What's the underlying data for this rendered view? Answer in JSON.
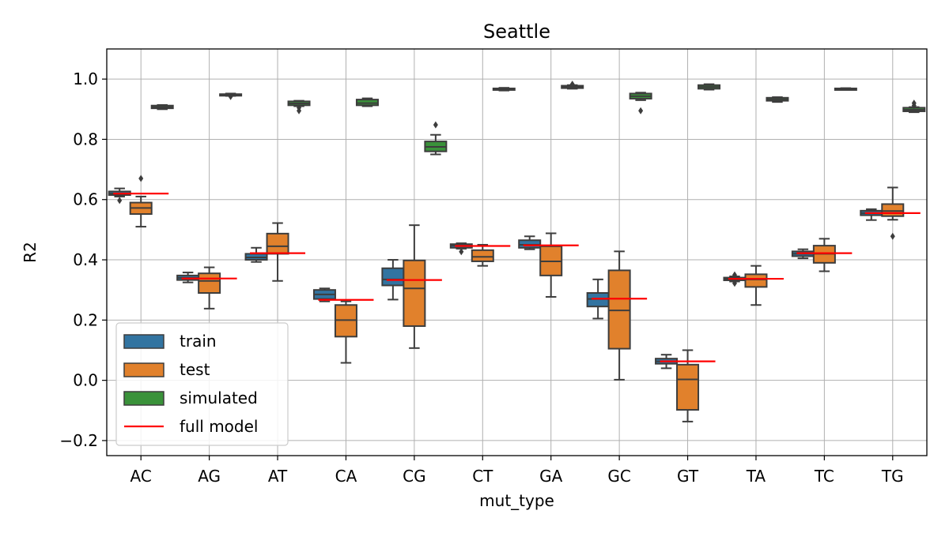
{
  "chart_data": {
    "type": "box",
    "title": "Seattle",
    "xlabel": "mut_type",
    "ylabel": "R2",
    "ylim": [
      -0.25,
      1.1
    ],
    "yticks": [
      -0.2,
      0.0,
      0.2,
      0.4,
      0.6,
      0.8,
      1.0
    ],
    "ytick_labels": [
      "−0.2",
      "0.0",
      "0.2",
      "0.4",
      "0.6",
      "0.8",
      "1.0"
    ],
    "grid": true,
    "legend_position": "lower-left",
    "categories": [
      "AC",
      "AG",
      "AT",
      "CA",
      "CG",
      "CT",
      "GA",
      "GC",
      "GT",
      "TA",
      "TC",
      "TG"
    ],
    "series": [
      {
        "name": "train",
        "color": "#3274a1",
        "boxes": [
          {
            "q1": 0.615,
            "median": 0.62,
            "q3": 0.627,
            "whislo": 0.61,
            "whishi": 0.637,
            "fliers": [
              0.597
            ]
          },
          {
            "q1": 0.333,
            "median": 0.34,
            "q3": 0.348,
            "whislo": 0.325,
            "whishi": 0.358,
            "fliers": []
          },
          {
            "q1": 0.4,
            "median": 0.408,
            "q3": 0.42,
            "whislo": 0.393,
            "whishi": 0.44,
            "fliers": []
          },
          {
            "q1": 0.27,
            "median": 0.285,
            "q3": 0.3,
            "whislo": 0.262,
            "whishi": 0.305,
            "fliers": []
          },
          {
            "q1": 0.315,
            "median": 0.335,
            "q3": 0.372,
            "whislo": 0.268,
            "whishi": 0.4,
            "fliers": []
          },
          {
            "q1": 0.44,
            "median": 0.447,
            "q3": 0.452,
            "whislo": 0.437,
            "whishi": 0.455,
            "fliers": [
              0.427
            ]
          },
          {
            "q1": 0.44,
            "median": 0.45,
            "q3": 0.465,
            "whislo": 0.435,
            "whishi": 0.478,
            "fliers": []
          },
          {
            "q1": 0.245,
            "median": 0.27,
            "q3": 0.29,
            "whislo": 0.205,
            "whishi": 0.335,
            "fliers": []
          },
          {
            "q1": 0.055,
            "median": 0.063,
            "q3": 0.072,
            "whislo": 0.04,
            "whishi": 0.085,
            "fliers": []
          },
          {
            "q1": 0.332,
            "median": 0.337,
            "q3": 0.341,
            "whislo": 0.328,
            "whishi": 0.345,
            "fliers": [
              0.322,
              0.35
            ]
          },
          {
            "q1": 0.412,
            "median": 0.42,
            "q3": 0.428,
            "whislo": 0.405,
            "whishi": 0.435,
            "fliers": []
          },
          {
            "q1": 0.548,
            "median": 0.555,
            "q3": 0.563,
            "whislo": 0.532,
            "whishi": 0.568,
            "fliers": []
          }
        ]
      },
      {
        "name": "test",
        "color": "#e1812c",
        "boxes": [
          {
            "q1": 0.552,
            "median": 0.572,
            "q3": 0.59,
            "whislo": 0.51,
            "whishi": 0.61,
            "fliers": [
              0.67
            ]
          },
          {
            "q1": 0.29,
            "median": 0.33,
            "q3": 0.355,
            "whislo": 0.238,
            "whishi": 0.375,
            "fliers": []
          },
          {
            "q1": 0.42,
            "median": 0.445,
            "q3": 0.487,
            "whislo": 0.33,
            "whishi": 0.522,
            "fliers": []
          },
          {
            "q1": 0.145,
            "median": 0.2,
            "q3": 0.25,
            "whislo": 0.058,
            "whishi": 0.262,
            "fliers": []
          },
          {
            "q1": 0.18,
            "median": 0.305,
            "q3": 0.398,
            "whislo": 0.107,
            "whishi": 0.515,
            "fliers": []
          },
          {
            "q1": 0.395,
            "median": 0.41,
            "q3": 0.432,
            "whislo": 0.38,
            "whishi": 0.45,
            "fliers": []
          },
          {
            "q1": 0.348,
            "median": 0.395,
            "q3": 0.445,
            "whislo": 0.277,
            "whishi": 0.488,
            "fliers": []
          },
          {
            "q1": 0.105,
            "median": 0.232,
            "q3": 0.365,
            "whislo": 0.002,
            "whishi": 0.428,
            "fliers": []
          },
          {
            "q1": -0.098,
            "median": 0.003,
            "q3": 0.052,
            "whislo": -0.137,
            "whishi": 0.1,
            "fliers": []
          },
          {
            "q1": 0.31,
            "median": 0.335,
            "q3": 0.352,
            "whislo": 0.25,
            "whishi": 0.38,
            "fliers": []
          },
          {
            "q1": 0.39,
            "median": 0.42,
            "q3": 0.447,
            "whislo": 0.362,
            "whishi": 0.47,
            "fliers": []
          },
          {
            "q1": 0.545,
            "median": 0.562,
            "q3": 0.585,
            "whislo": 0.533,
            "whishi": 0.64,
            "fliers": [
              0.478
            ]
          }
        ]
      },
      {
        "name": "simulated",
        "color": "#3a923a",
        "boxes": [
          {
            "q1": 0.903,
            "median": 0.907,
            "q3": 0.912,
            "whislo": 0.9,
            "whishi": 0.914,
            "fliers": []
          },
          {
            "q1": 0.946,
            "median": 0.948,
            "q3": 0.95,
            "whislo": 0.944,
            "whishi": 0.952,
            "fliers": [
              0.942
            ]
          },
          {
            "q1": 0.913,
            "median": 0.919,
            "q3": 0.926,
            "whislo": 0.91,
            "whishi": 0.928,
            "fliers": [
              0.905,
              0.895
            ]
          },
          {
            "q1": 0.913,
            "median": 0.92,
            "q3": 0.932,
            "whislo": 0.91,
            "whishi": 0.936,
            "fliers": []
          },
          {
            "q1": 0.76,
            "median": 0.775,
            "q3": 0.793,
            "whislo": 0.75,
            "whishi": 0.815,
            "fliers": [
              0.848
            ]
          },
          {
            "q1": 0.964,
            "median": 0.967,
            "q3": 0.969,
            "whislo": 0.962,
            "whishi": 0.971,
            "fliers": []
          },
          {
            "q1": 0.97,
            "median": 0.974,
            "q3": 0.978,
            "whislo": 0.968,
            "whishi": 0.98,
            "fliers": [
              0.983
            ]
          },
          {
            "q1": 0.935,
            "median": 0.943,
            "q3": 0.952,
            "whislo": 0.93,
            "whishi": 0.955,
            "fliers": [
              0.895
            ]
          },
          {
            "q1": 0.968,
            "median": 0.974,
            "q3": 0.98,
            "whislo": 0.965,
            "whishi": 0.983,
            "fliers": []
          },
          {
            "q1": 0.928,
            "median": 0.933,
            "q3": 0.938,
            "whislo": 0.924,
            "whishi": 0.94,
            "fliers": []
          },
          {
            "q1": 0.966,
            "median": 0.968,
            "q3": 0.969,
            "whislo": 0.965,
            "whishi": 0.97,
            "fliers": []
          },
          {
            "q1": 0.893,
            "median": 0.898,
            "q3": 0.905,
            "whislo": 0.89,
            "whishi": 0.907,
            "fliers": [
              0.912,
              0.92
            ]
          }
        ]
      }
    ],
    "full_model": {
      "name": "full model",
      "color": "#ff0000",
      "values": [
        0.62,
        0.338,
        0.422,
        0.267,
        0.333,
        0.446,
        0.448,
        0.271,
        0.063,
        0.337,
        0.422,
        0.555
      ]
    }
  }
}
